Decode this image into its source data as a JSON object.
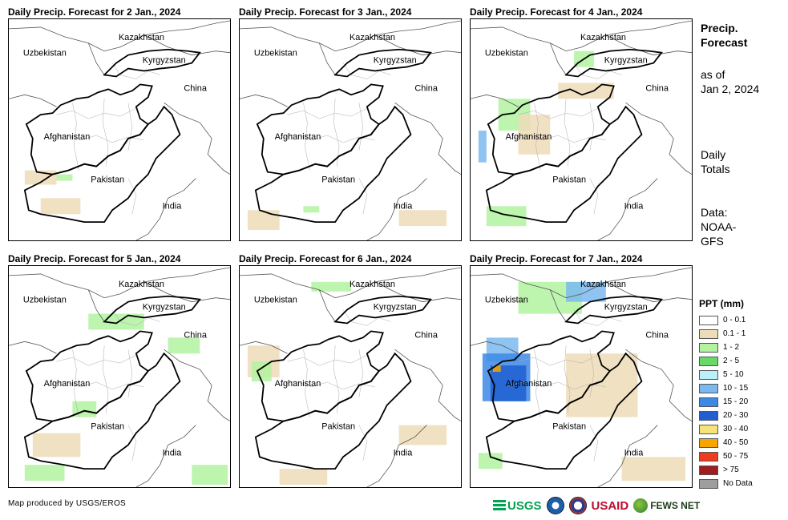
{
  "panels": [
    {
      "title": "Daily Precip. Forecast for 2 Jan., 2024"
    },
    {
      "title": "Daily Precip. Forecast for 3 Jan., 2024"
    },
    {
      "title": "Daily Precip. Forecast for 4 Jan., 2024"
    },
    {
      "title": "Daily Precip. Forecast for 5 Jan., 2024"
    },
    {
      "title": "Daily Precip. Forecast for 6 Jan., 2024"
    },
    {
      "title": "Daily Precip. Forecast for 7 Jan., 2024"
    }
  ],
  "map_labels": {
    "kazakhstan": "Kazakhstan",
    "uzbekistan": "Uzbekistan",
    "kyrgyzstan": "Kyrgyzstan",
    "china": "China",
    "afghanistan": "Afghanistan",
    "pakistan": "Pakistan",
    "india": "India"
  },
  "side": {
    "title_line1": "Precip.",
    "title_line2": "Forecast",
    "asof_line1": "as of",
    "asof_line2": "Jan 2, 2024",
    "daily_line1": "Daily",
    "daily_line2": "Totals",
    "data_line1": "Data:",
    "data_line2": "NOAA-",
    "data_line3": "GFS"
  },
  "legend": {
    "title": "PPT (mm)",
    "items": [
      {
        "label": "0 - 0.1",
        "color": "#ffffff"
      },
      {
        "label": "0.1 - 1",
        "color": "#eedcb8"
      },
      {
        "label": "1 - 2",
        "color": "#b2f2a0"
      },
      {
        "label": "2 - 5",
        "color": "#66d966"
      },
      {
        "label": "5 - 10",
        "color": "#b9f0fa"
      },
      {
        "label": "10 - 15",
        "color": "#7ab8f0"
      },
      {
        "label": "15 - 20",
        "color": "#3c8ae6"
      },
      {
        "label": "20 - 30",
        "color": "#1f5fd1"
      },
      {
        "label": "30 - 40",
        "color": "#f8e27a"
      },
      {
        "label": "40 - 50",
        "color": "#f7a600"
      },
      {
        "label": "50 - 75",
        "color": "#f03c1e"
      },
      {
        "label": "> 75",
        "color": "#a11d1d"
      },
      {
        "label": "No Data",
        "color": "#9e9e9e"
      }
    ]
  },
  "credit": "Map produced by USGS/EROS",
  "logos": {
    "usgs": "USGS",
    "usaid": "USAID",
    "fews": "FEWS NET"
  }
}
